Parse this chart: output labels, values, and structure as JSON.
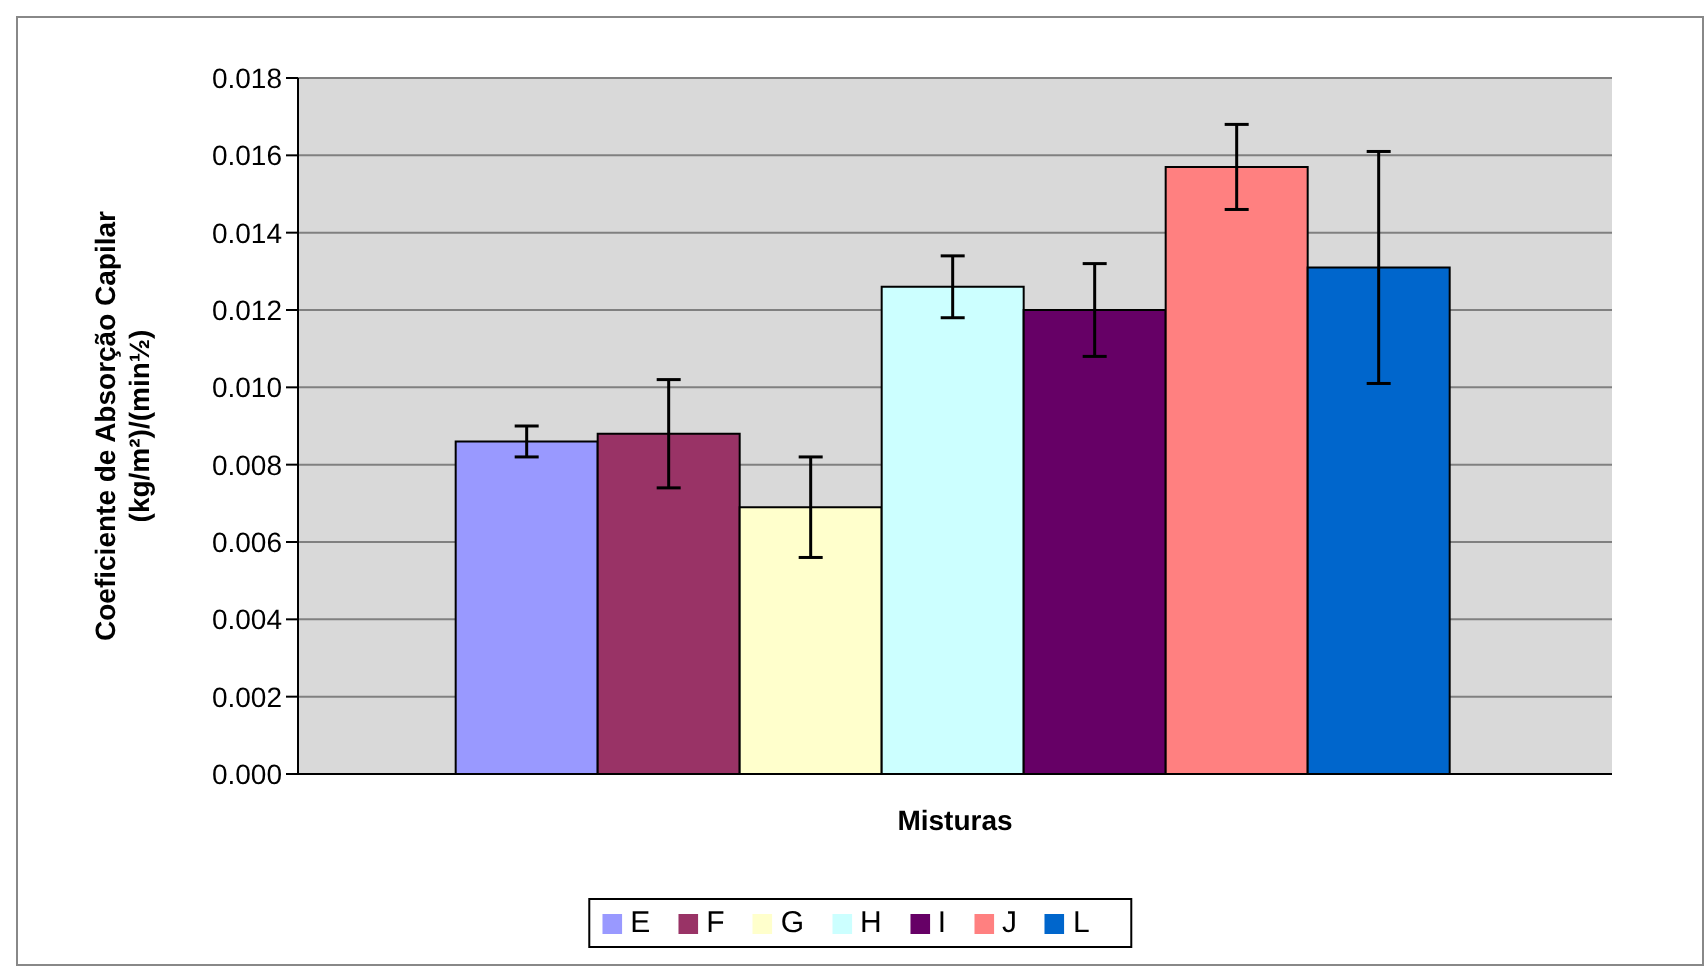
{
  "chart_data": {
    "type": "bar",
    "xlabel": "Misturas",
    "ylabel": "Coeficiente de Absorção Capilar\n(kg/m²)/(min½)",
    "categories": [
      null
    ],
    "series": [
      {
        "name": "E",
        "color": "#9999ff",
        "values": [
          0.0086
        ],
        "errors": [
          0.0004
        ]
      },
      {
        "name": "F",
        "color": "#993366",
        "values": [
          0.0088
        ],
        "errors": [
          0.0014
        ]
      },
      {
        "name": "G",
        "color": "#ffffcc",
        "values": [
          0.0069
        ],
        "errors": [
          0.0013
        ]
      },
      {
        "name": "H",
        "color": "#ccffff",
        "values": [
          0.0126
        ],
        "errors": [
          0.0008
        ]
      },
      {
        "name": "I",
        "color": "#660066",
        "values": [
          0.012
        ],
        "errors": [
          0.0012
        ]
      },
      {
        "name": "J",
        "color": "#ff8080",
        "values": [
          0.0157
        ],
        "errors": [
          0.0011
        ]
      },
      {
        "name": "L",
        "color": "#0066cc",
        "values": [
          0.0131
        ],
        "errors": [
          0.003
        ]
      }
    ],
    "ylim": [
      0,
      0.018
    ],
    "yticks": [
      {
        "value": 0,
        "label": "0.000"
      },
      0.002,
      0.004,
      0.006,
      0.008,
      {
        "value": 0.01,
        "label": "0.010"
      },
      0.012,
      0.014,
      0.016,
      0.018
    ],
    "grid": "y",
    "legend": "bottom"
  }
}
